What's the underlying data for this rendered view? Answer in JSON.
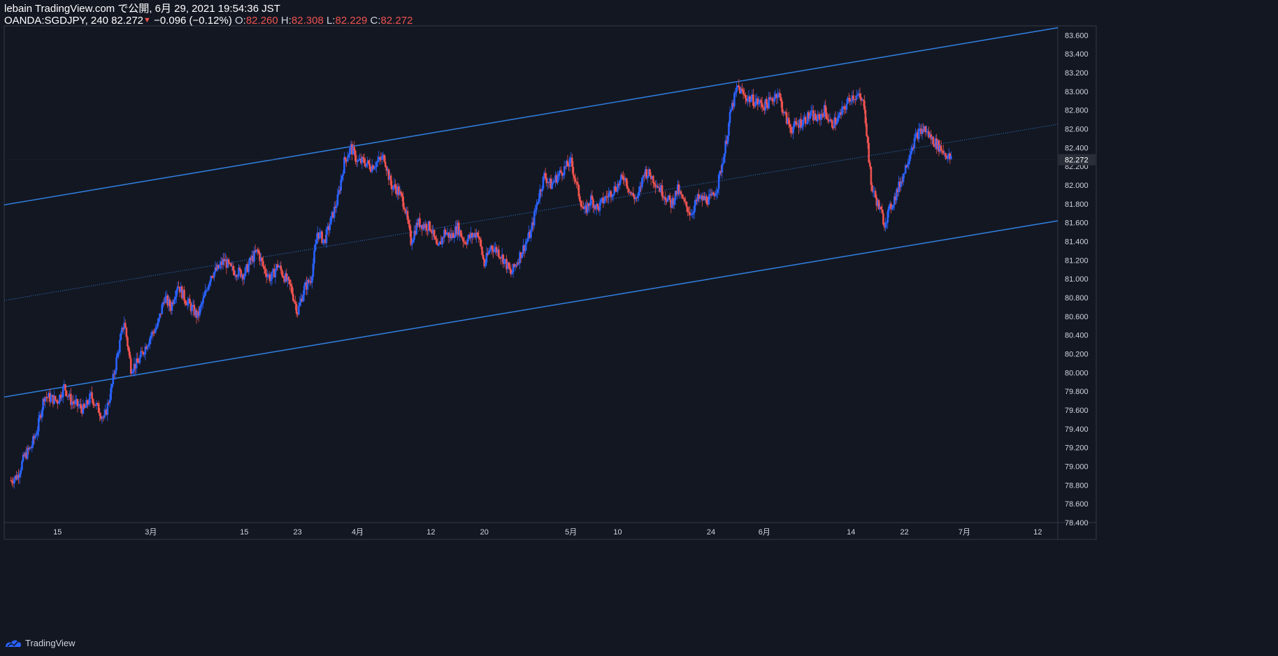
{
  "header": {
    "line1": "lebain TradingView.com で公開, 6月 29, 2021 19:54:36 JST",
    "symbol": "OANDA:SGDJPY, 240",
    "last": "82.272",
    "change": "−0.096 (−0.12%)",
    "o_label": "O:",
    "o_value": "82.260",
    "h_label": "H:",
    "h_value": "82.308",
    "l_label": "L:",
    "l_value": "82.229",
    "c_label": "C:",
    "c_value": "82.272"
  },
  "footer": {
    "brand": "TradingView"
  },
  "colors": {
    "background": "#131722",
    "up": "#2962ff",
    "down": "#ef5350",
    "channel": "#2f7bd9",
    "text": "#d1d4dc"
  },
  "chart_data": {
    "type": "candlestick",
    "symbol": "OANDA:SGDJPY",
    "interval": "240",
    "ylim": [
      78.4,
      83.7
    ],
    "y_ticks": [
      "83.600",
      "83.400",
      "83.200",
      "83.000",
      "82.800",
      "82.600",
      "82.400",
      "82.200",
      "82.000",
      "81.800",
      "81.600",
      "81.400",
      "81.200",
      "81.000",
      "80.800",
      "80.600",
      "80.400",
      "80.200",
      "80.000",
      "79.800",
      "79.600",
      "79.400",
      "79.200",
      "79.000",
      "78.800",
      "78.600",
      "78.400"
    ],
    "x_ticks": [
      "15",
      "3月",
      "15",
      "23",
      "4月",
      "12",
      "20",
      "5月",
      "10",
      "24",
      "6月",
      "14",
      "22",
      "7月",
      "12"
    ],
    "x_start": "2021-02-07",
    "x_end": "2021-07-15",
    "x_tick_dates": [
      "2021-02-15",
      "2021-03-01",
      "2021-03-15",
      "2021-03-23",
      "2021-04-01",
      "2021-04-12",
      "2021-04-20",
      "2021-05-03",
      "2021-05-10",
      "2021-05-24",
      "2021-06-01",
      "2021-06-14",
      "2021-06-22",
      "2021-07-01",
      "2021-07-12"
    ],
    "current_price": "82.272",
    "close_path": [
      [
        "2021-02-08",
        78.85
      ],
      [
        "2021-02-09",
        78.9
      ],
      [
        "2021-02-10",
        79.1
      ],
      [
        "2021-02-11",
        79.2
      ],
      [
        "2021-02-12",
        79.4
      ],
      [
        "2021-02-13",
        79.75
      ],
      [
        "2021-02-15",
        79.7
      ],
      [
        "2021-02-16",
        79.85
      ],
      [
        "2021-02-17",
        79.7
      ],
      [
        "2021-02-18",
        79.65
      ],
      [
        "2021-02-19",
        79.6
      ],
      [
        "2021-02-20",
        79.75
      ],
      [
        "2021-02-22",
        79.5
      ],
      [
        "2021-02-23",
        79.8
      ],
      [
        "2021-02-24",
        80.2
      ],
      [
        "2021-02-25",
        80.55
      ],
      [
        "2021-02-26",
        80.05
      ],
      [
        "2021-02-27",
        80.1
      ],
      [
        "2021-03-01",
        80.4
      ],
      [
        "2021-03-02",
        80.5
      ],
      [
        "2021-03-03",
        80.8
      ],
      [
        "2021-03-04",
        80.7
      ],
      [
        "2021-03-05",
        80.95
      ],
      [
        "2021-03-06",
        80.8
      ],
      [
        "2021-03-08",
        80.6
      ],
      [
        "2021-03-09",
        80.8
      ],
      [
        "2021-03-10",
        81.05
      ],
      [
        "2021-03-11",
        81.1
      ],
      [
        "2021-03-12",
        81.2
      ],
      [
        "2021-03-13",
        81.1
      ],
      [
        "2021-03-15",
        81.05
      ],
      [
        "2021-03-16",
        81.2
      ],
      [
        "2021-03-17",
        81.3
      ],
      [
        "2021-03-18",
        81.1
      ],
      [
        "2021-03-19",
        81.0
      ],
      [
        "2021-03-20",
        81.15
      ],
      [
        "2021-03-22",
        80.9
      ],
      [
        "2021-03-23",
        80.65
      ],
      [
        "2021-03-24",
        80.9
      ],
      [
        "2021-03-25",
        81.0
      ],
      [
        "2021-03-26",
        81.5
      ],
      [
        "2021-03-27",
        81.4
      ],
      [
        "2021-03-29",
        81.85
      ],
      [
        "2021-03-30",
        82.25
      ],
      [
        "2021-03-31",
        82.4
      ],
      [
        "2021-04-01",
        82.25
      ],
      [
        "2021-04-02",
        82.25
      ],
      [
        "2021-04-03",
        82.2
      ],
      [
        "2021-04-05",
        82.3
      ],
      [
        "2021-04-06",
        82.0
      ],
      [
        "2021-04-07",
        81.95
      ],
      [
        "2021-04-08",
        81.8
      ],
      [
        "2021-04-09",
        81.4
      ],
      [
        "2021-04-10",
        81.6
      ],
      [
        "2021-04-12",
        81.55
      ],
      [
        "2021-04-13",
        81.3
      ],
      [
        "2021-04-14",
        81.5
      ],
      [
        "2021-04-15",
        81.45
      ],
      [
        "2021-04-16",
        81.55
      ],
      [
        "2021-04-17",
        81.4
      ],
      [
        "2021-04-19",
        81.5
      ],
      [
        "2021-04-20",
        81.15
      ],
      [
        "2021-04-21",
        81.35
      ],
      [
        "2021-04-22",
        81.3
      ],
      [
        "2021-04-23",
        81.2
      ],
      [
        "2021-04-24",
        81.05
      ],
      [
        "2021-04-26",
        81.35
      ],
      [
        "2021-04-27",
        81.5
      ],
      [
        "2021-04-28",
        81.85
      ],
      [
        "2021-04-29",
        82.1
      ],
      [
        "2021-04-30",
        82.0
      ],
      [
        "2021-05-01",
        82.1
      ],
      [
        "2021-05-03",
        82.25
      ],
      [
        "2021-05-04",
        81.95
      ],
      [
        "2021-05-05",
        81.7
      ],
      [
        "2021-05-06",
        81.85
      ],
      [
        "2021-05-07",
        81.75
      ],
      [
        "2021-05-08",
        81.85
      ],
      [
        "2021-05-10",
        82.0
      ],
      [
        "2021-05-11",
        82.1
      ],
      [
        "2021-05-12",
        81.9
      ],
      [
        "2021-05-13",
        81.85
      ],
      [
        "2021-05-14",
        82.15
      ],
      [
        "2021-05-15",
        82.1
      ],
      [
        "2021-05-17",
        81.9
      ],
      [
        "2021-05-18",
        81.8
      ],
      [
        "2021-05-19",
        81.95
      ],
      [
        "2021-05-20",
        81.8
      ],
      [
        "2021-05-21",
        81.7
      ],
      [
        "2021-05-22",
        81.85
      ],
      [
        "2021-05-24",
        81.85
      ],
      [
        "2021-05-25",
        82.0
      ],
      [
        "2021-05-26",
        82.35
      ],
      [
        "2021-05-27",
        82.8
      ],
      [
        "2021-05-28",
        83.05
      ],
      [
        "2021-05-29",
        82.95
      ],
      [
        "2021-06-01",
        82.85
      ],
      [
        "2021-06-02",
        82.9
      ],
      [
        "2021-06-03",
        83.0
      ],
      [
        "2021-06-04",
        82.75
      ],
      [
        "2021-06-05",
        82.6
      ],
      [
        "2021-06-07",
        82.7
      ],
      [
        "2021-06-08",
        82.75
      ],
      [
        "2021-06-09",
        82.7
      ],
      [
        "2021-06-10",
        82.8
      ],
      [
        "2021-06-11",
        82.65
      ],
      [
        "2021-06-12",
        82.7
      ],
      [
        "2021-06-14",
        82.95
      ],
      [
        "2021-06-15",
        82.95
      ],
      [
        "2021-06-16",
        82.85
      ],
      [
        "2021-06-17",
        82.0
      ],
      [
        "2021-06-18",
        81.8
      ],
      [
        "2021-06-19",
        81.6
      ],
      [
        "2021-06-21",
        81.95
      ],
      [
        "2021-06-22",
        82.15
      ],
      [
        "2021-06-23",
        82.4
      ],
      [
        "2021-06-24",
        82.55
      ],
      [
        "2021-06-25",
        82.6
      ],
      [
        "2021-06-26",
        82.5
      ],
      [
        "2021-06-28",
        82.35
      ],
      [
        "2021-06-29",
        82.27
      ]
    ],
    "channel": {
      "upper": [
        [
          "2021-02-07",
          81.79
        ],
        [
          "2021-07-15",
          83.68
        ]
      ],
      "middle": [
        [
          "2021-02-07",
          80.77
        ],
        [
          "2021-07-15",
          82.65
        ]
      ],
      "lower": [
        [
          "2021-02-07",
          79.74
        ],
        [
          "2021-07-15",
          81.62
        ]
      ]
    }
  }
}
